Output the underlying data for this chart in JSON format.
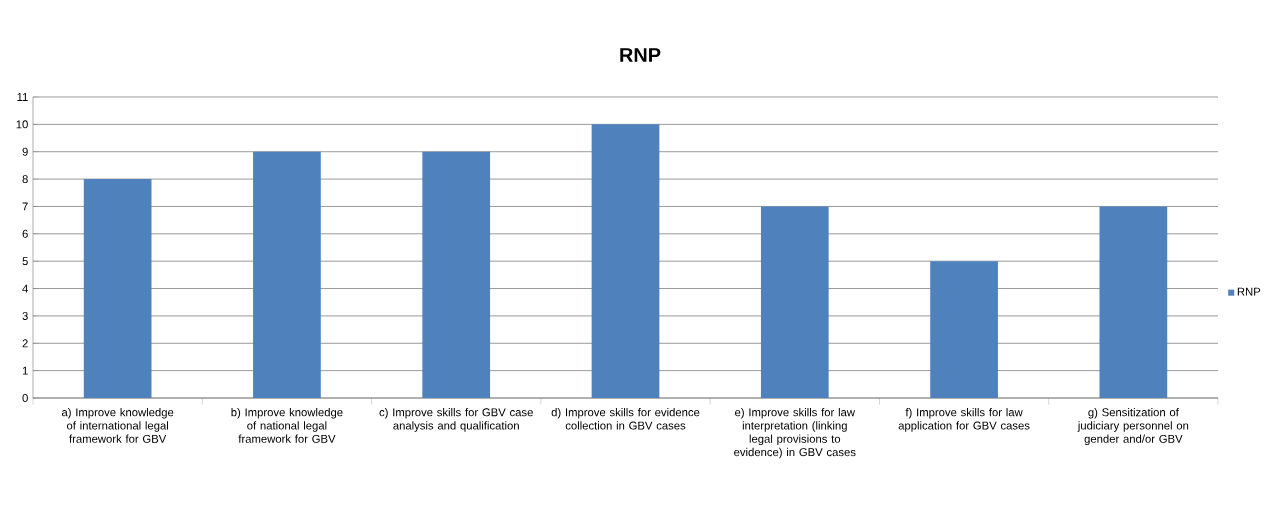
{
  "chart_data": {
    "type": "bar",
    "title": "RNP",
    "categories": [
      "a) Improve knowledge of international legal framework for GBV",
      "b) Improve knowledge of national legal framework for GBV",
      "c) Improve skills for GBV case analysis and qualification",
      "d) Improve skills for evidence collection in GBV cases",
      "e) Improve skills for law interpretation (linking legal provisions to evidence) in GBV cases",
      "f) Improve skills for law application for GBV cases",
      "g) Sensitization of judiciary personnel on gender and/or GBV"
    ],
    "series": [
      {
        "name": "RNP",
        "color": "#4f81bd",
        "values": [
          8,
          9,
          9,
          10,
          7,
          5,
          7
        ]
      }
    ],
    "ylim": [
      0,
      11
    ],
    "yticks": [
      0,
      1,
      2,
      3,
      4,
      5,
      6,
      7,
      8,
      9,
      10,
      11
    ],
    "grid": "y",
    "legend": "right"
  }
}
